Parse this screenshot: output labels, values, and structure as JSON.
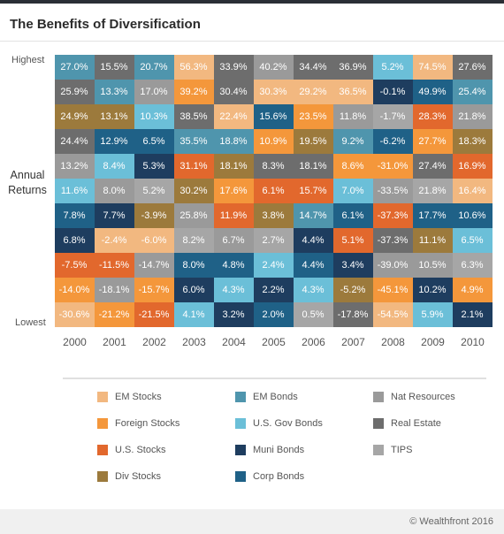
{
  "title": "The Benefits of Diversification",
  "y_labels": {
    "highest": "Highest",
    "annual": "Annual",
    "returns": "Returns",
    "lowest": "Lowest"
  },
  "footer": {
    "copyright": "© Wealthfront 2016"
  },
  "colors": {
    "EM Stocks": "#f2b880",
    "Foreign Stocks": "#f4973b",
    "U.S. Stocks": "#e2682d",
    "Div Stocks": "#9c7a3c",
    "EM Bonds": "#4f95ad",
    "U.S. Gov Bonds": "#6bbfd8",
    "Muni Bonds": "#1e3d5f",
    "Corp Bonds": "#1f6187",
    "Nat Resources": "#9a9a9a",
    "Real Estate": "#6d6d6d",
    "TIPS": "#a6a6a6"
  },
  "chart_data": {
    "type": "table",
    "title": "The Benefits of Diversification",
    "ylabel": "Annual Returns",
    "categories": [
      "2000",
      "2001",
      "2002",
      "2003",
      "2004",
      "2005",
      "2006",
      "2007",
      "2008",
      "2009",
      "2010"
    ],
    "legend": [
      [
        "EM Stocks",
        "EM Bonds",
        "Nat Resources"
      ],
      [
        "Foreign Stocks",
        "U.S. Gov Bonds",
        "Real Estate"
      ],
      [
        "U.S. Stocks",
        "Muni Bonds",
        "TIPS"
      ],
      [
        "Div Stocks",
        "Corp Bonds",
        ""
      ]
    ],
    "columns": [
      [
        [
          "27.0%",
          "EM Bonds"
        ],
        [
          "25.9%",
          "Real Estate"
        ],
        [
          "24.9%",
          "Div Stocks"
        ],
        [
          "24.4%",
          "Real Estate"
        ],
        [
          "13.2%",
          "Nat Resources"
        ],
        [
          "11.6%",
          "U.S. Gov Bonds"
        ],
        [
          "7.8%",
          "Corp Bonds"
        ],
        [
          "6.8%",
          "Muni Bonds"
        ],
        [
          "-7.5%",
          "U.S. Stocks"
        ],
        [
          "-14.0%",
          "Foreign Stocks"
        ],
        [
          "-30.6%",
          "EM Stocks"
        ]
      ],
      [
        [
          "15.5%",
          "Real Estate"
        ],
        [
          "13.3%",
          "EM Bonds"
        ],
        [
          "13.1%",
          "Div Stocks"
        ],
        [
          "12.9%",
          "Corp Bonds"
        ],
        [
          "8.4%",
          "U.S. Gov Bonds"
        ],
        [
          "8.0%",
          "Nat Resources"
        ],
        [
          "7.7%",
          "Muni Bonds"
        ],
        [
          "-2.4%",
          "EM Stocks"
        ],
        [
          "-11.5%",
          "U.S. Stocks"
        ],
        [
          "-18.1%",
          "Nat Resources"
        ],
        [
          "-21.2%",
          "Foreign Stocks"
        ]
      ],
      [
        [
          "20.7%",
          "EM Bonds"
        ],
        [
          "17.0%",
          "Nat Resources"
        ],
        [
          "10.3%",
          "U.S. Gov Bonds"
        ],
        [
          "6.5%",
          "Corp Bonds"
        ],
        [
          "5.3%",
          "Muni Bonds"
        ],
        [
          "5.2%",
          "TIPS"
        ],
        [
          "-3.9%",
          "Div Stocks"
        ],
        [
          "-6.0%",
          "EM Stocks"
        ],
        [
          "-14.7%",
          "Nat Resources"
        ],
        [
          "-15.7%",
          "Foreign Stocks"
        ],
        [
          "-21.5%",
          "U.S. Stocks"
        ]
      ],
      [
        [
          "56.3%",
          "EM Stocks"
        ],
        [
          "39.2%",
          "Foreign Stocks"
        ],
        [
          "38.5%",
          "Real Estate"
        ],
        [
          "35.5%",
          "EM Bonds"
        ],
        [
          "31.1%",
          "U.S. Stocks"
        ],
        [
          "30.2%",
          "Div Stocks"
        ],
        [
          "25.8%",
          "Nat Resources"
        ],
        [
          "8.2%",
          "TIPS"
        ],
        [
          "8.0%",
          "Corp Bonds"
        ],
        [
          "6.0%",
          "Muni Bonds"
        ],
        [
          "4.1%",
          "U.S. Gov Bonds"
        ]
      ],
      [
        [
          "33.9%",
          "Real Estate"
        ],
        [
          "30.4%",
          "Real Estate"
        ],
        [
          "22.4%",
          "EM Stocks"
        ],
        [
          "18.8%",
          "EM Bonds"
        ],
        [
          "18.1%",
          "Div Stocks"
        ],
        [
          "17.6%",
          "Foreign Stocks"
        ],
        [
          "11.9%",
          "U.S. Stocks"
        ],
        [
          "6.7%",
          "Nat Resources"
        ],
        [
          "4.8%",
          "Corp Bonds"
        ],
        [
          "4.3%",
          "U.S. Gov Bonds"
        ],
        [
          "3.2%",
          "Muni Bonds"
        ]
      ],
      [
        [
          "40.2%",
          "Nat Resources"
        ],
        [
          "30.3%",
          "EM Stocks"
        ],
        [
          "15.6%",
          "Corp Bonds"
        ],
        [
          "10.9%",
          "Foreign Stocks"
        ],
        [
          "8.3%",
          "Real Estate"
        ],
        [
          "6.1%",
          "U.S. Stocks"
        ],
        [
          "3.8%",
          "Div Stocks"
        ],
        [
          "2.7%",
          "TIPS"
        ],
        [
          "2.4%",
          "U.S. Gov Bonds"
        ],
        [
          "2.2%",
          "Muni Bonds"
        ],
        [
          "2.0%",
          "Corp Bonds"
        ]
      ],
      [
        [
          "34.4%",
          "Real Estate"
        ],
        [
          "29.2%",
          "EM Stocks"
        ],
        [
          "23.5%",
          "Foreign Stocks"
        ],
        [
          "19.5%",
          "Div Stocks"
        ],
        [
          "18.1%",
          "Real Estate"
        ],
        [
          "15.7%",
          "U.S. Stocks"
        ],
        [
          "14.7%",
          "EM Bonds"
        ],
        [
          "4.4%",
          "Muni Bonds"
        ],
        [
          "4.4%",
          "Corp Bonds"
        ],
        [
          "4.3%",
          "U.S. Gov Bonds"
        ],
        [
          "0.5%",
          "TIPS"
        ]
      ],
      [
        [
          "36.9%",
          "Real Estate"
        ],
        [
          "36.5%",
          "EM Stocks"
        ],
        [
          "11.8%",
          "Nat Resources"
        ],
        [
          "9.2%",
          "EM Bonds"
        ],
        [
          "8.6%",
          "Foreign Stocks"
        ],
        [
          "7.0%",
          "U.S. Gov Bonds"
        ],
        [
          "6.1%",
          "Corp Bonds"
        ],
        [
          "5.1%",
          "U.S. Stocks"
        ],
        [
          "3.4%",
          "Muni Bonds"
        ],
        [
          "-5.2%",
          "Div Stocks"
        ],
        [
          "-17.8%",
          "Real Estate"
        ]
      ],
      [
        [
          "5.2%",
          "U.S. Gov Bonds"
        ],
        [
          "-0.1%",
          "Muni Bonds"
        ],
        [
          "-1.7%",
          "TIPS"
        ],
        [
          "-6.2%",
          "Corp Bonds"
        ],
        [
          "-31.0%",
          "Foreign Stocks"
        ],
        [
          "-33.5%",
          "Nat Resources"
        ],
        [
          "-37.3%",
          "U.S. Stocks"
        ],
        [
          "-37.3%",
          "Real Estate"
        ],
        [
          "-39.0%",
          "Nat Resources"
        ],
        [
          "-45.1%",
          "Foreign Stocks"
        ],
        [
          "-54.5%",
          "EM Stocks"
        ]
      ],
      [
        [
          "74.5%",
          "EM Stocks"
        ],
        [
          "49.9%",
          "Corp Bonds"
        ],
        [
          "28.3%",
          "U.S. Stocks"
        ],
        [
          "27.7%",
          "Foreign Stocks"
        ],
        [
          "27.4%",
          "Real Estate"
        ],
        [
          "21.8%",
          "TIPS"
        ],
        [
          "17.7%",
          "Corp Bonds"
        ],
        [
          "11.1%",
          "Div Stocks"
        ],
        [
          "10.5%",
          "Nat Resources"
        ],
        [
          "10.2%",
          "Muni Bonds"
        ],
        [
          "5.9%",
          "U.S. Gov Bonds"
        ]
      ],
      [
        [
          "27.6%",
          "Real Estate"
        ],
        [
          "25.4%",
          "EM Bonds"
        ],
        [
          "21.8%",
          "Nat Resources"
        ],
        [
          "18.3%",
          "Div Stocks"
        ],
        [
          "16.9%",
          "U.S. Stocks"
        ],
        [
          "16.4%",
          "EM Stocks"
        ],
        [
          "10.6%",
          "Corp Bonds"
        ],
        [
          "6.5%",
          "U.S. Gov Bonds"
        ],
        [
          "6.3%",
          "TIPS"
        ],
        [
          "4.9%",
          "Foreign Stocks"
        ],
        [
          "2.1%",
          "Muni Bonds"
        ]
      ]
    ]
  }
}
